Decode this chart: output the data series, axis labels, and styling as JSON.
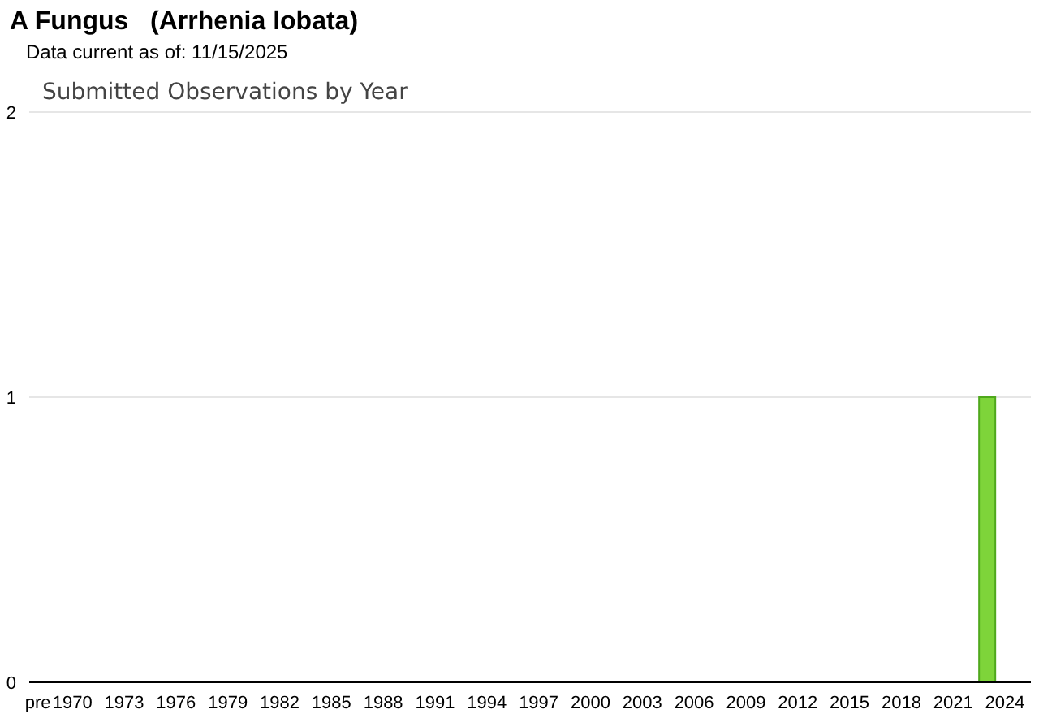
{
  "chart_data": {
    "type": "bar",
    "title": "A Fungus   (Arrhenia lobata)",
    "subtitle": "Data current as of: 11/15/2025",
    "annotations": [
      "Submitted Observations by Year"
    ],
    "categories": [
      "pre",
      null,
      "1970",
      null,
      null,
      "1973",
      null,
      null,
      "1976",
      null,
      null,
      "1979",
      null,
      null,
      "1982",
      null,
      null,
      "1985",
      null,
      null,
      "1988",
      null,
      null,
      "1991",
      null,
      null,
      "1994",
      null,
      null,
      "1997",
      null,
      null,
      "2000",
      null,
      null,
      "2003",
      null,
      null,
      "2006",
      null,
      null,
      "2009",
      null,
      null,
      "2012",
      null,
      null,
      "2015",
      null,
      null,
      "2018",
      null,
      null,
      "2021",
      null,
      null,
      "2024",
      null
    ],
    "values": [
      0,
      0,
      0,
      0,
      0,
      0,
      0,
      0,
      0,
      0,
      0,
      0,
      0,
      0,
      0,
      0,
      0,
      0,
      0,
      0,
      0,
      0,
      0,
      0,
      0,
      0,
      0,
      0,
      0,
      0,
      0,
      0,
      0,
      0,
      0,
      0,
      0,
      0,
      0,
      0,
      0,
      0,
      0,
      0,
      0,
      0,
      0,
      0,
      0,
      0,
      0,
      0,
      0,
      0,
      0,
      1,
      0,
      0
    ],
    "color": "#7ed43a",
    "ylim": [
      0,
      2
    ],
    "yticks": [
      0,
      1,
      2
    ],
    "grid": "y"
  }
}
